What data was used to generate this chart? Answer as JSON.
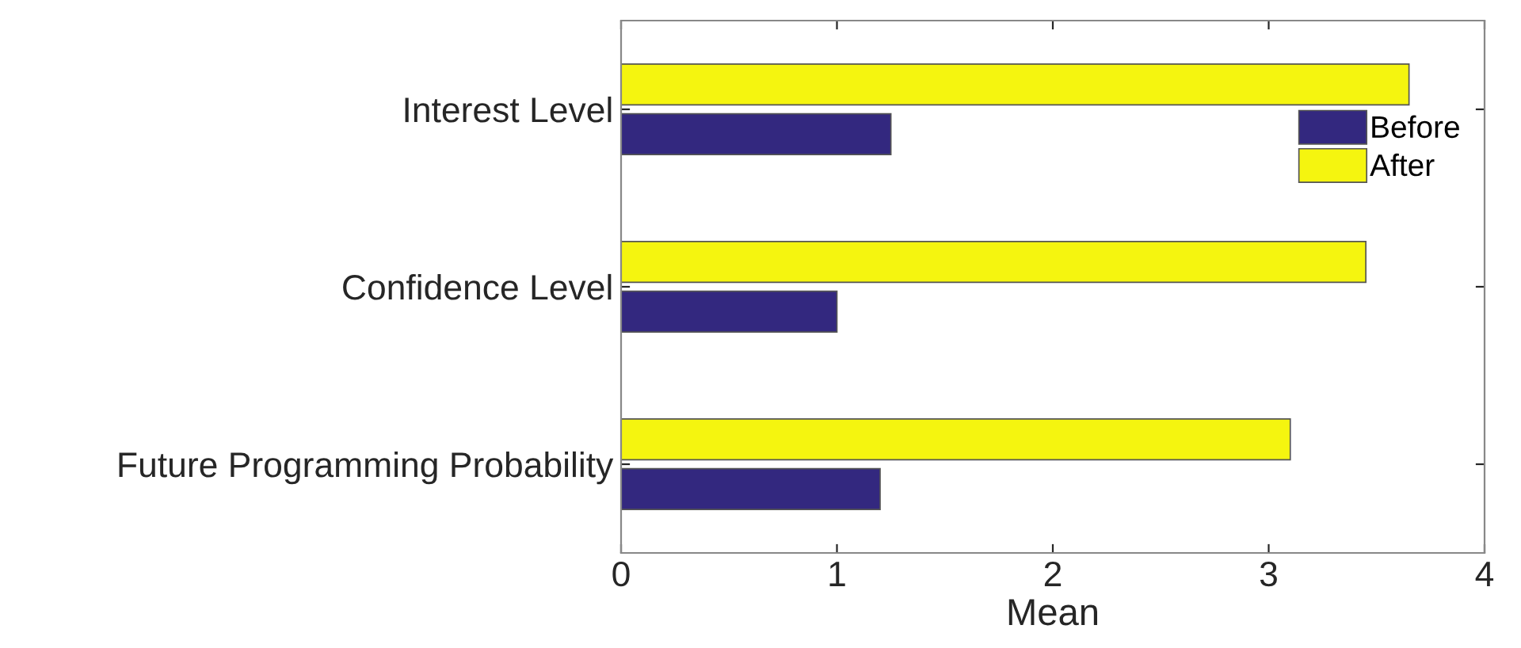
{
  "chart_data": {
    "type": "bar",
    "orientation": "horizontal",
    "xlabel": "Mean",
    "categories": [
      "Interest Level",
      "Confidence Level",
      "Future Programming Probability"
    ],
    "series": [
      {
        "name": "Before",
        "color": "#33287f",
        "values": [
          1.25,
          1.0,
          1.2
        ]
      },
      {
        "name": "After",
        "color": "#f5f50f",
        "values": [
          3.65,
          3.45,
          3.1
        ]
      }
    ],
    "xlim": [
      0,
      4
    ],
    "xticks": [
      0,
      1,
      2,
      3,
      4
    ],
    "grid": false,
    "legend": "top right"
  }
}
